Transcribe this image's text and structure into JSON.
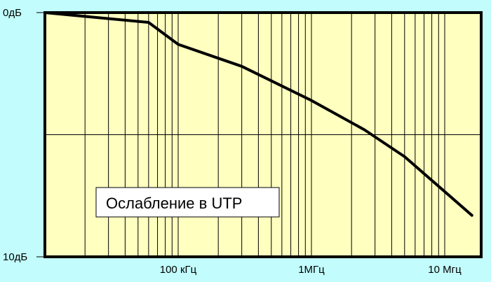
{
  "colors": {
    "background": "#C2FCFC",
    "plot_area": "#FFFFC0",
    "grid": "#000000",
    "series": "#000000",
    "annotation_box": "#FFFFFF"
  },
  "chart_data": {
    "type": "line",
    "x_scale": "log",
    "xlim": [
      10000,
      20000000
    ],
    "ylim": [
      -10,
      0
    ],
    "grid": true,
    "x_tick_labels": [
      {
        "x": 100000,
        "label": "100 кГц"
      },
      {
        "x": 1000000,
        "label": "1МГц"
      },
      {
        "x": 10000000,
        "label": "10 Мгц"
      }
    ],
    "y_tick_labels": [
      {
        "y": 0,
        "label": "0дБ"
      },
      {
        "y": -10,
        "label": "10дБ"
      }
    ],
    "annotation": "Ослабление в UTP",
    "series": [
      {
        "points": [
          {
            "x": 10000,
            "y": 0
          },
          {
            "x": 60000,
            "y": -0.4
          },
          {
            "x": 100000,
            "y": -1.3
          },
          {
            "x": 300000,
            "y": -2.2
          },
          {
            "x": 1000000,
            "y": -3.6
          },
          {
            "x": 2500000,
            "y": -4.8
          },
          {
            "x": 5000000,
            "y": -5.9
          },
          {
            "x": 16000000,
            "y": -8.3
          }
        ]
      }
    ]
  }
}
